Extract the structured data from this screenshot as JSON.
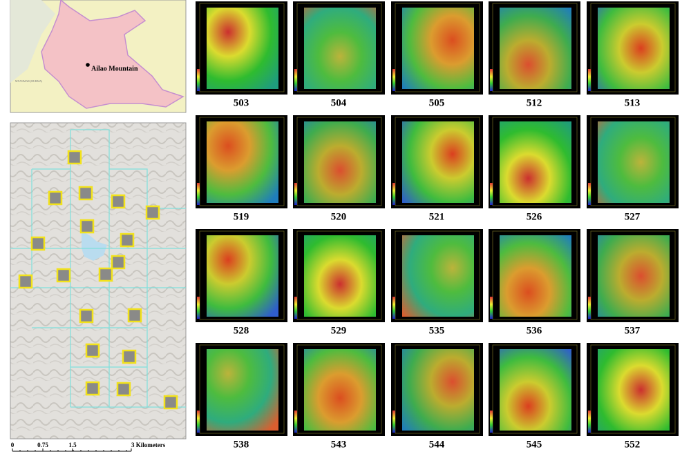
{
  "overview_map": {
    "place_label": "Ailao Mountain",
    "country_label": "MYANMAR (BURMA)"
  },
  "scale_bar": {
    "labels": [
      "0",
      "0.75",
      "1.5",
      "3 Kilometers"
    ]
  },
  "plots": [
    "503",
    "504",
    "505",
    "512",
    "513",
    "519",
    "520",
    "521",
    "526",
    "527",
    "528",
    "529",
    "535",
    "536",
    "537",
    "538",
    "543",
    "544",
    "545",
    "552"
  ]
}
